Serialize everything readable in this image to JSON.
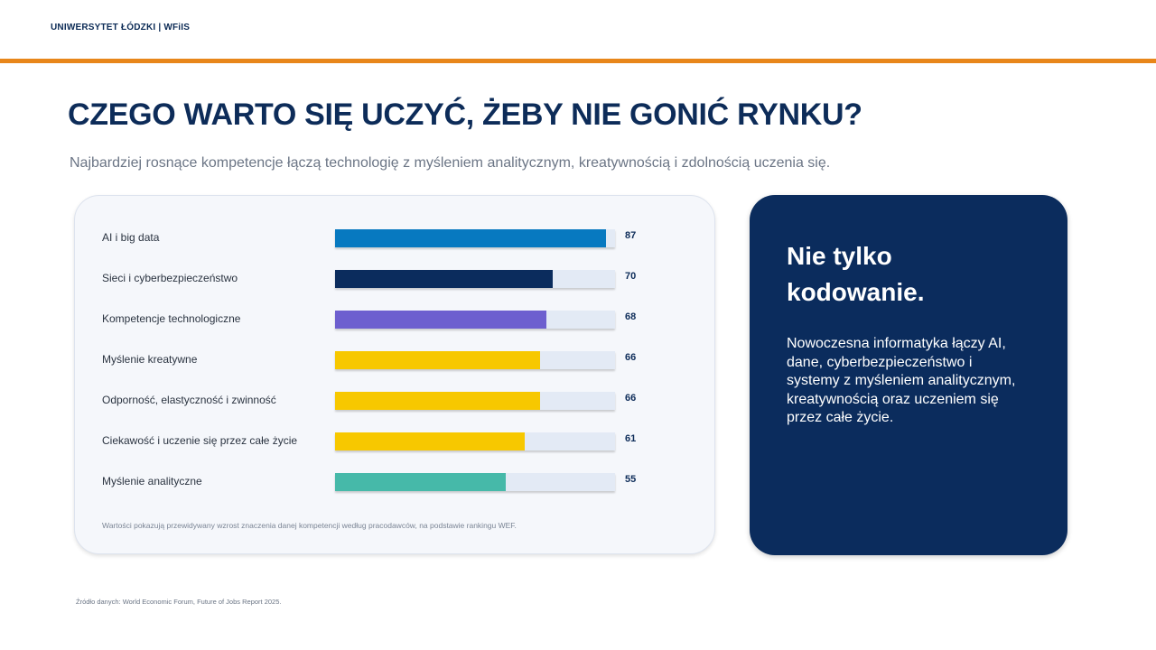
{
  "header": {
    "brand": "UNIWERSYTET ŁÓDZKI  |  WFiIS"
  },
  "title": "CZEGO WARTO SIĘ UCZYĆ, ŻEBY NIE GONIĆ RYNKU?",
  "subtitle": "Najbardziej rosnące kompetencje łączą technologię z myśleniem analitycznym, kreatywnością i zdolnością uczenia się.",
  "chart_data": {
    "type": "bar",
    "orientation": "horizontal",
    "categories": [
      "AI i big data",
      "Sieci i cyberbezpieczeństwo",
      "Kompetencje technologiczne",
      "Myślenie kreatywne",
      "Odporność, elastyczność i zwinność",
      "Ciekawość i uczenie się przez całe życie",
      "Myślenie analityczne"
    ],
    "values": [
      87,
      70,
      68,
      66,
      66,
      61,
      55
    ],
    "colors": [
      "#0779c0",
      "#0b2c5d",
      "#6d5fcf",
      "#f7c800",
      "#f7c800",
      "#f7c800",
      "#46b9a9"
    ],
    "track_color": "#e3eaf5",
    "xlim": [
      0,
      90
    ],
    "grid": false,
    "note": "Wartości pokazują przewidywany wzrost znaczenia danej kompetencji według pracodawców, na podstawie rankingu WEF."
  },
  "side_panel": {
    "heading": "Nie tylko kodowanie.",
    "text": "Nowoczesna informatyka łączy AI, dane, cyberbezpieczeństwo i systemy z myśleniem analitycznym, kreatywnością oraz uczeniem się przez całe życie."
  },
  "source": "Źródło danych: World Economic Forum, Future of Jobs Report 2025."
}
